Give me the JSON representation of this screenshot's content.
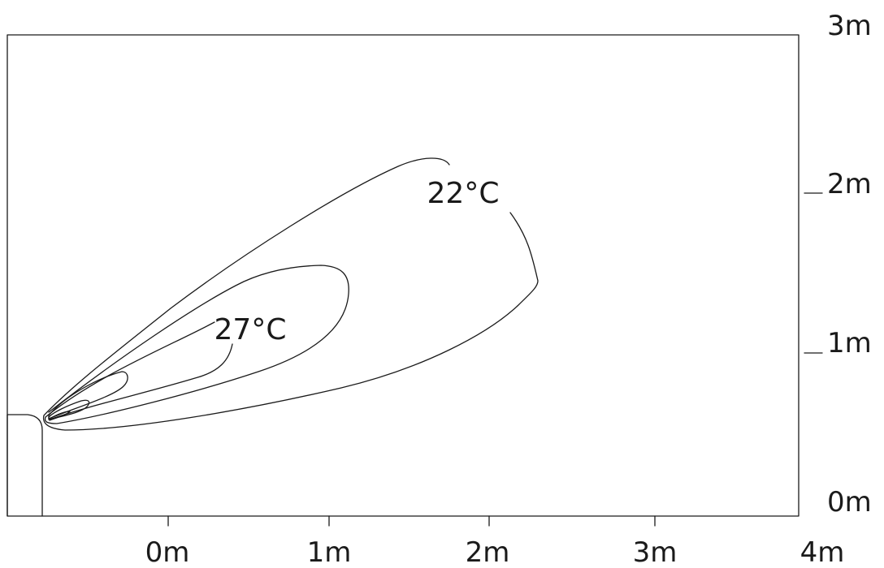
{
  "diagram": {
    "x_ticks": [
      "0m",
      "1m",
      "2m",
      "3m",
      "4m"
    ],
    "y_ticks": [
      "0m",
      "1m",
      "2m",
      "3m"
    ],
    "contour_labels": [
      {
        "text": "22°C",
        "temperature_c": 22
      },
      {
        "text": "27°C",
        "temperature_c": 27
      }
    ]
  }
}
